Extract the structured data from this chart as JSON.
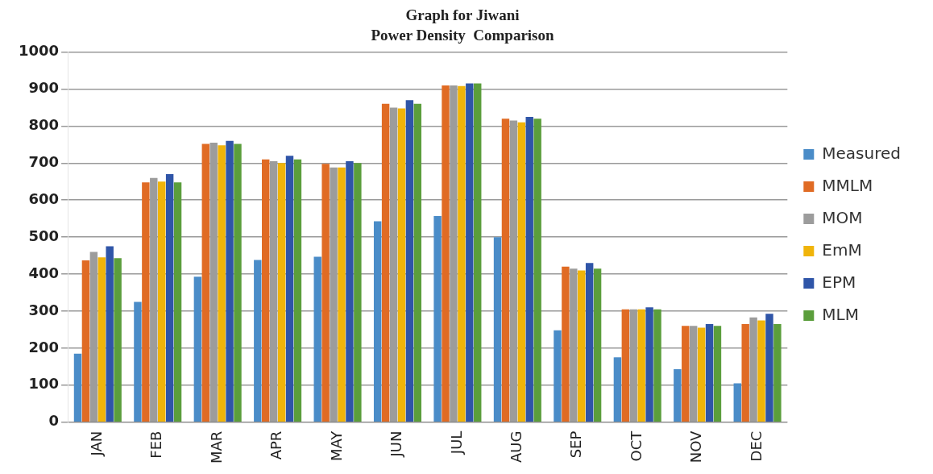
{
  "chart_data": {
    "type": "bar",
    "title": "Graph for Jiwani",
    "subtitle": "Power Density  Comparison",
    "categories": [
      "JAN",
      "FEB",
      "MAR",
      "APR",
      "MAY",
      "JUN",
      "JUL",
      "AUG",
      "SEP",
      "OCT",
      "NOV",
      "DEC"
    ],
    "series": [
      {
        "name": "Measured",
        "color": "#4a8cc8",
        "values": [
          185,
          325,
          393,
          438,
          447,
          543,
          557,
          500,
          248,
          175,
          143,
          105
        ]
      },
      {
        "name": "MMLM",
        "color": "#e06b24",
        "values": [
          437,
          648,
          752,
          710,
          698,
          860,
          910,
          820,
          420,
          305,
          260,
          265
        ]
      },
      {
        "name": "MOM",
        "color": "#9c9c9c",
        "values": [
          460,
          660,
          755,
          705,
          688,
          850,
          910,
          815,
          415,
          305,
          260,
          283
        ]
      },
      {
        "name": "EmM",
        "color": "#f0b40a",
        "values": [
          445,
          650,
          748,
          700,
          688,
          848,
          908,
          810,
          410,
          305,
          255,
          275
        ]
      },
      {
        "name": "EPM",
        "color": "#2f55a8",
        "values": [
          475,
          670,
          760,
          720,
          705,
          870,
          915,
          825,
          430,
          310,
          265,
          293
        ]
      },
      {
        "name": "MLM",
        "color": "#5b9e3c",
        "values": [
          443,
          648,
          752,
          710,
          700,
          860,
          915,
          820,
          415,
          305,
          260,
          265
        ]
      }
    ],
    "ylim": [
      0,
      1000
    ],
    "yticks": [
      0,
      100,
      200,
      300,
      400,
      500,
      600,
      700,
      800,
      900,
      1000
    ],
    "grid": "y",
    "legend": "right"
  }
}
